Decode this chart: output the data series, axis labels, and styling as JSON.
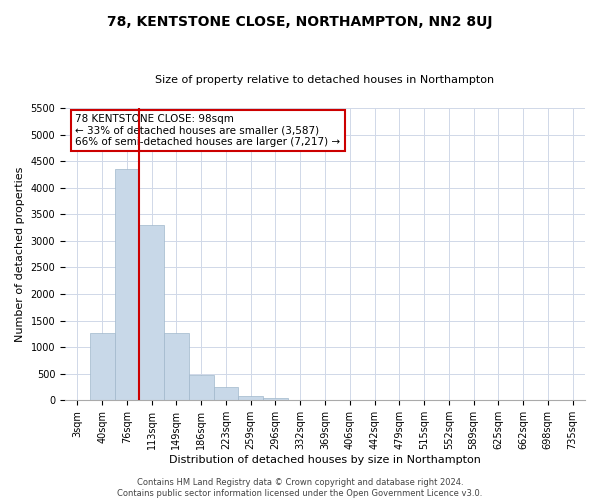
{
  "title": "78, KENTSTONE CLOSE, NORTHAMPTON, NN2 8UJ",
  "subtitle": "Size of property relative to detached houses in Northampton",
  "xlabel": "Distribution of detached houses by size in Northampton",
  "ylabel": "Number of detached properties",
  "bar_labels": [
    "3sqm",
    "40sqm",
    "76sqm",
    "113sqm",
    "149sqm",
    "186sqm",
    "223sqm",
    "259sqm",
    "296sqm",
    "332sqm",
    "369sqm",
    "406sqm",
    "442sqm",
    "479sqm",
    "515sqm",
    "552sqm",
    "589sqm",
    "625sqm",
    "662sqm",
    "698sqm",
    "735sqm"
  ],
  "bar_values": [
    0,
    1270,
    4360,
    3300,
    1270,
    480,
    240,
    80,
    40,
    0,
    0,
    0,
    0,
    0,
    0,
    0,
    0,
    0,
    0,
    0,
    0
  ],
  "bar_color": "#c8d8e8",
  "bar_edgecolor": "#a0b8cc",
  "marker_line_color": "#cc0000",
  "annotation_line1": "78 KENTSTONE CLOSE: 98sqm",
  "annotation_line2": "← 33% of detached houses are smaller (3,587)",
  "annotation_line3": "66% of semi-detached houses are larger (7,217) →",
  "annotation_box_edgecolor": "#cc0000",
  "ylim": [
    0,
    5500
  ],
  "yticks": [
    0,
    500,
    1000,
    1500,
    2000,
    2500,
    3000,
    3500,
    4000,
    4500,
    5000,
    5500
  ],
  "footer_line1": "Contains HM Land Registry data © Crown copyright and database right 2024.",
  "footer_line2": "Contains public sector information licensed under the Open Government Licence v3.0.",
  "background_color": "#ffffff",
  "grid_color": "#d0d8e8",
  "title_fontsize": 10,
  "subtitle_fontsize": 8,
  "ylabel_fontsize": 8,
  "xlabel_fontsize": 8,
  "tick_fontsize": 7,
  "footer_fontsize": 6
}
